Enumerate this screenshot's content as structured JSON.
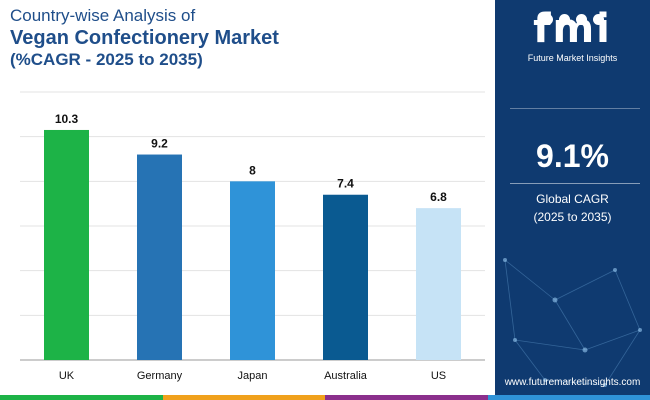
{
  "title": {
    "line1": "Country-wise Analysis of",
    "line2": "Vegan Confectionery Market",
    "line3": "(%CAGR - 2025 to 2035)"
  },
  "chart_data": {
    "type": "bar",
    "categories": [
      "UK",
      "Germany",
      "Japan",
      "Australia",
      "US"
    ],
    "values": [
      10.3,
      9.2,
      8,
      7.4,
      6.8
    ],
    "value_labels": [
      "10.3",
      "9.2",
      "8",
      "7.4",
      "6.8"
    ],
    "colors": [
      "#1db347",
      "#2673b4",
      "#2f93d8",
      "#0a5a91",
      "#c6e3f6"
    ],
    "title": "Country-wise Analysis of Vegan Confectionery Market (%CAGR - 2025 to 2035)",
    "xlabel": "",
    "ylabel": "",
    "ylim": [
      0,
      12
    ],
    "grid": true
  },
  "side_panel": {
    "logo_text": "fmi",
    "logo_subtitle": "Future Market Insights",
    "cagr_value": "9.1%",
    "cagr_label": "Global CAGR",
    "cagr_period": "(2025 to 2035)",
    "website": "www.futuremarketinsights.com",
    "background": "#0f3a70"
  },
  "bottom_strip_colors": [
    "#1db347",
    "#f0a11c",
    "#8b2f8c",
    "#2f93d8"
  ]
}
